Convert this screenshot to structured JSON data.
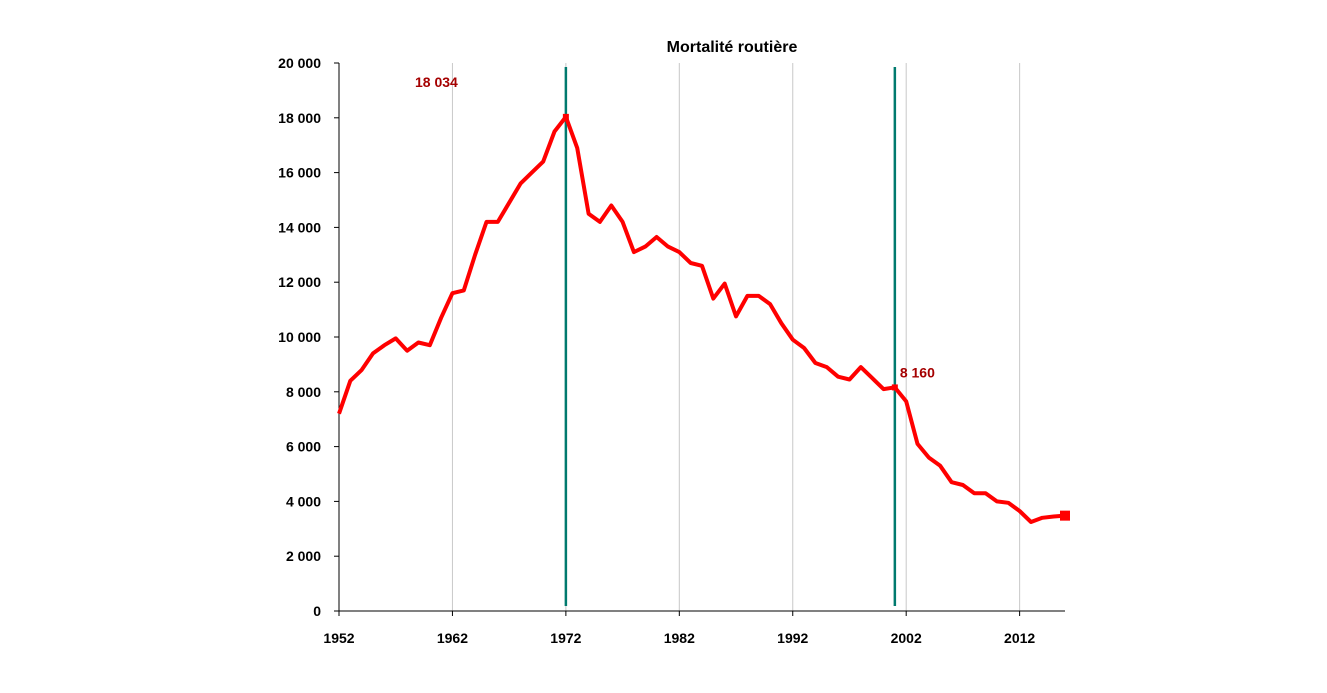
{
  "chart_data": {
    "type": "line",
    "title": "Mortalité routière",
    "xlabel": "",
    "ylabel": "",
    "xlim": [
      1952,
      2016
    ],
    "ylim": [
      0,
      20000
    ],
    "x_ticks": [
      1952,
      1962,
      1972,
      1982,
      1992,
      2002,
      2012
    ],
    "x_tick_labels": [
      "1952",
      "1962",
      "1972",
      "1982",
      "1992",
      "2002",
      "2012"
    ],
    "y_ticks": [
      0,
      2000,
      4000,
      6000,
      8000,
      10000,
      12000,
      14000,
      16000,
      18000,
      20000
    ],
    "y_tick_labels": [
      "0",
      "2 000",
      "4 000",
      "6 000",
      "8 000",
      "10 000",
      "12 000",
      "14 000",
      "16 000",
      "18 000",
      "20 000"
    ],
    "vertical_gridlines": [
      1962,
      1972,
      1982,
      1992,
      2002,
      2012
    ],
    "reference_lines": [
      1972,
      2001
    ],
    "line_color": "#ff0000",
    "reference_line_color": "#007a6e",
    "annotation_color": "#a50000",
    "series": [
      {
        "x": [
          1952,
          1953,
          1954,
          1955,
          1956,
          1957,
          1958,
          1959,
          1960,
          1961,
          1962,
          1963,
          1964,
          1965,
          1966,
          1967,
          1968,
          1969,
          1970,
          1971,
          1972,
          1973,
          1974,
          1975,
          1976,
          1977,
          1978,
          1979,
          1980,
          1981,
          1982,
          1983,
          1984,
          1985,
          1986,
          1987,
          1988,
          1989,
          1990,
          1991,
          1992,
          1993,
          1994,
          1995,
          1996,
          1997,
          1998,
          1999,
          2000,
          2001,
          2002,
          2003,
          2004,
          2005,
          2006,
          2007,
          2008,
          2009,
          2010,
          2011,
          2012,
          2013,
          2014,
          2015,
          2016
        ],
        "values": [
          7200,
          8400,
          8800,
          9400,
          9700,
          9950,
          9500,
          9800,
          9700,
          10700,
          11600,
          11700,
          13000,
          14200,
          14200,
          14900,
          15600,
          16000,
          16400,
          17500,
          18034,
          16900,
          14500,
          14200,
          14800,
          14200,
          13100,
          13300,
          13650,
          13300,
          13100,
          12700,
          12600,
          11400,
          11950,
          10750,
          11500,
          11500,
          11200,
          10500,
          9900,
          9600,
          9050,
          8900,
          8550,
          8450,
          8900,
          8500,
          8100,
          8160,
          7650,
          6100,
          5600,
          5300,
          4700,
          4600,
          4300,
          4300,
          4000,
          3950,
          3650,
          3250,
          3400,
          3450,
          3480
        ]
      }
    ],
    "annotations": [
      {
        "text": "18 034",
        "x": 1972,
        "y": 18034
      },
      {
        "text": "8 160",
        "x": 2001,
        "y": 8160
      }
    ]
  }
}
